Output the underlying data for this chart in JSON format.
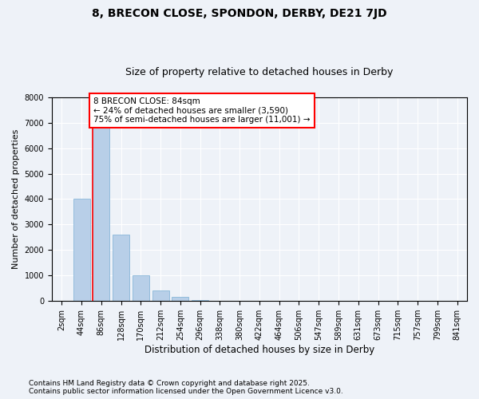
{
  "title1": "8, BRECON CLOSE, SPONDON, DERBY, DE21 7JD",
  "title2": "Size of property relative to detached houses in Derby",
  "xlabel": "Distribution of detached houses by size in Derby",
  "ylabel": "Number of detached properties",
  "categories": [
    "2sqm",
    "44sqm",
    "86sqm",
    "128sqm",
    "170sqm",
    "212sqm",
    "254sqm",
    "296sqm",
    "338sqm",
    "380sqm",
    "422sqm",
    "464sqm",
    "506sqm",
    "547sqm",
    "589sqm",
    "631sqm",
    "673sqm",
    "715sqm",
    "757sqm",
    "799sqm",
    "841sqm"
  ],
  "values": [
    0,
    4000,
    7300,
    2600,
    1000,
    400,
    150,
    50,
    10,
    0,
    0,
    0,
    0,
    0,
    0,
    0,
    0,
    0,
    0,
    0,
    0
  ],
  "bar_color": "#b8cfe8",
  "bar_edge_color": "#7aafd4",
  "annotation_title": "8 BRECON CLOSE: 84sqm",
  "annotation_line1": "← 24% of detached houses are smaller (3,590)",
  "annotation_line2": "75% of semi-detached houses are larger (11,001) →",
  "footnote1": "Contains HM Land Registry data © Crown copyright and database right 2025.",
  "footnote2": "Contains public sector information licensed under the Open Government Licence v3.0.",
  "ylim": [
    0,
    8000
  ],
  "bg_color": "#eef2f8",
  "plot_bg": "#eef2f8",
  "grid_color": "#ffffff",
  "title1_fontsize": 10,
  "title2_fontsize": 9,
  "xlabel_fontsize": 8.5,
  "ylabel_fontsize": 8,
  "tick_fontsize": 7,
  "annotation_fontsize": 7.5,
  "footnote_fontsize": 6.5
}
